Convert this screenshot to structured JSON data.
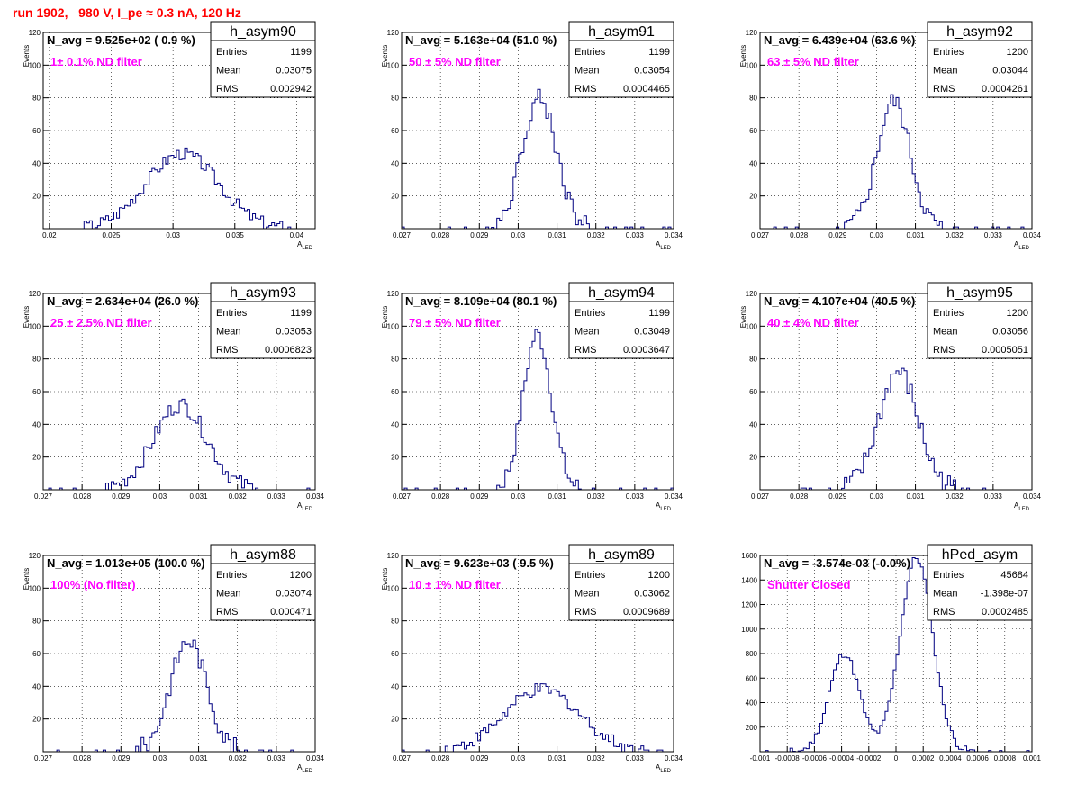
{
  "page": {
    "title": "run 1902,   980 V, I_pe ≈ 0.3 nA, 120 Hz"
  },
  "colors": {
    "title": "#ff0000",
    "annotation": "#ff00ff",
    "histogram": "#000080",
    "grid": "#000000"
  },
  "chart_data": [
    {
      "type": "bar",
      "name": "h_asym90",
      "nlabel": "N_avg = 9.525e+02 ( 0.9 %)",
      "note": "1± 0.1% ND filter",
      "stats": [
        [
          "Entries",
          "1199"
        ],
        [
          "Mean",
          "0.03075"
        ],
        [
          "RMS",
          "0.002942"
        ]
      ],
      "xlabel": "A_LED",
      "ylabel": "Events",
      "xlim": [
        0.0195,
        0.0415
      ],
      "ylim": [
        0,
        120
      ],
      "xticks": [
        0.02,
        0.025,
        0.03,
        0.035,
        0.04
      ],
      "xticklabels": [
        "0.02",
        "0.025",
        "0.03",
        "0.035",
        "0.04"
      ],
      "yticks": [
        20,
        40,
        60,
        80,
        100,
        120
      ],
      "mu": 0.03075,
      "sigma": 0.00294,
      "peak": 46,
      "jitter": 4
    },
    {
      "type": "bar",
      "name": "h_asym91",
      "nlabel": "N_avg = 5.163e+04 (51.0 %)",
      "note": "50 ± 5% ND filter",
      "stats": [
        [
          "Entries",
          "1199"
        ],
        [
          "Mean",
          "0.03054"
        ],
        [
          "RMS",
          "0.0004465"
        ]
      ],
      "xlabel": "A_LED",
      "ylabel": "Events",
      "xlim": [
        0.027,
        0.034
      ],
      "ylim": [
        0,
        120
      ],
      "xticks": [
        0.027,
        0.028,
        0.029,
        0.03,
        0.031,
        0.032,
        0.033,
        0.034
      ],
      "xticklabels": [
        "0.027",
        "0.028",
        "0.029",
        "0.03",
        "0.031",
        "0.032",
        "0.033",
        "0.034"
      ],
      "yticks": [
        20,
        40,
        60,
        80,
        100,
        120
      ],
      "mu": 0.03054,
      "sigma": 0.000447,
      "peak": 80,
      "jitter": 6
    },
    {
      "type": "bar",
      "name": "h_asym92",
      "nlabel": "N_avg = 6.439e+04 (63.6 %)",
      "note": "63 ± 5% ND filter",
      "stats": [
        [
          "Entries",
          "1200"
        ],
        [
          "Mean",
          "0.03044"
        ],
        [
          "RMS",
          "0.0004261"
        ]
      ],
      "xlabel": "A_LED",
      "ylabel": "Events",
      "xlim": [
        0.027,
        0.034
      ],
      "ylim": [
        0,
        120
      ],
      "xticks": [
        0.027,
        0.028,
        0.029,
        0.03,
        0.031,
        0.032,
        0.033,
        0.034
      ],
      "xticklabels": [
        "0.027",
        "0.028",
        "0.029",
        "0.03",
        "0.031",
        "0.032",
        "0.033",
        "0.034"
      ],
      "yticks": [
        20,
        40,
        60,
        80,
        100,
        120
      ],
      "mu": 0.03044,
      "sigma": 0.000426,
      "peak": 78,
      "jitter": 6
    },
    {
      "type": "bar",
      "name": "h_asym93",
      "nlabel": "N_avg = 2.634e+04 (26.0 %)",
      "note": "25 ± 2.5% ND filter",
      "stats": [
        [
          "Entries",
          "1199"
        ],
        [
          "Mean",
          "0.03053"
        ],
        [
          "RMS",
          "0.0006823"
        ]
      ],
      "xlabel": "A_LED",
      "ylabel": "Events",
      "xlim": [
        0.027,
        0.034
      ],
      "ylim": [
        0,
        120
      ],
      "xticks": [
        0.027,
        0.028,
        0.029,
        0.03,
        0.031,
        0.032,
        0.033,
        0.034
      ],
      "xticklabels": [
        "0.027",
        "0.028",
        "0.029",
        "0.03",
        "0.031",
        "0.032",
        "0.033",
        "0.034"
      ],
      "yticks": [
        20,
        40,
        60,
        80,
        100,
        120
      ],
      "mu": 0.03053,
      "sigma": 0.000682,
      "peak": 52,
      "jitter": 5
    },
    {
      "type": "bar",
      "name": "h_asym94",
      "nlabel": "N_avg = 8.109e+04 (80.1 %)",
      "note": "79 ± 5% ND filter",
      "stats": [
        [
          "Entries",
          "1199"
        ],
        [
          "Mean",
          "0.03049"
        ],
        [
          "RMS",
          "0.0003647"
        ]
      ],
      "xlabel": "A_LED",
      "ylabel": "Events",
      "xlim": [
        0.027,
        0.034
      ],
      "ylim": [
        0,
        120
      ],
      "xticks": [
        0.027,
        0.028,
        0.029,
        0.03,
        0.031,
        0.032,
        0.033,
        0.034
      ],
      "xticklabels": [
        "0.027",
        "0.028",
        "0.029",
        "0.03",
        "0.031",
        "0.032",
        "0.033",
        "0.034"
      ],
      "yticks": [
        20,
        40,
        60,
        80,
        100,
        120
      ],
      "mu": 0.03049,
      "sigma": 0.000365,
      "peak": 95,
      "jitter": 6
    },
    {
      "type": "bar",
      "name": "h_asym95",
      "nlabel": "N_avg = 4.107e+04 (40.5 %)",
      "note": "40 ± 4% ND filter",
      "stats": [
        [
          "Entries",
          "1200"
        ],
        [
          "Mean",
          "0.03056"
        ],
        [
          "RMS",
          "0.0005051"
        ]
      ],
      "xlabel": "A_LED",
      "ylabel": "Events",
      "xlim": [
        0.027,
        0.034
      ],
      "ylim": [
        0,
        120
      ],
      "xticks": [
        0.027,
        0.028,
        0.029,
        0.03,
        0.031,
        0.032,
        0.033,
        0.034
      ],
      "xticklabels": [
        "0.027",
        "0.028",
        "0.029",
        "0.03",
        "0.031",
        "0.032",
        "0.033",
        "0.034"
      ],
      "yticks": [
        20,
        40,
        60,
        80,
        100,
        120
      ],
      "mu": 0.03056,
      "sigma": 0.000505,
      "peak": 72,
      "jitter": 7
    },
    {
      "type": "bar",
      "name": "h_asym88",
      "nlabel": "N_avg = 1.013e+05 (100.0 %)",
      "note": "100% (No filter)",
      "stats": [
        [
          "Entries",
          "1200"
        ],
        [
          "Mean",
          "0.03074"
        ],
        [
          "RMS",
          "0.000471"
        ]
      ],
      "xlabel": "A_LED",
      "ylabel": "Events",
      "xlim": [
        0.027,
        0.034
      ],
      "ylim": [
        0,
        120
      ],
      "xticks": [
        0.027,
        0.028,
        0.029,
        0.03,
        0.031,
        0.032,
        0.033,
        0.034
      ],
      "xticklabels": [
        "0.027",
        "0.028",
        "0.029",
        "0.03",
        "0.031",
        "0.032",
        "0.033",
        "0.034"
      ],
      "yticks": [
        20,
        40,
        60,
        80,
        100,
        120
      ],
      "mu": 0.03074,
      "sigma": 0.000471,
      "peak": 68,
      "jitter": 6
    },
    {
      "type": "bar",
      "name": "h_asym89",
      "nlabel": "N_avg = 9.623e+03 ( 9.5 %)",
      "note": "10 ± 1% ND filter",
      "stats": [
        [
          "Entries",
          "1200"
        ],
        [
          "Mean",
          "0.03062"
        ],
        [
          "RMS",
          "0.0009689"
        ]
      ],
      "xlabel": "A_LED",
      "ylabel": "Events",
      "xlim": [
        0.027,
        0.034
      ],
      "ylim": [
        0,
        120
      ],
      "xticks": [
        0.027,
        0.028,
        0.029,
        0.03,
        0.031,
        0.032,
        0.033,
        0.034
      ],
      "xticklabels": [
        "0.027",
        "0.028",
        "0.029",
        "0.03",
        "0.031",
        "0.032",
        "0.033",
        "0.034"
      ],
      "yticks": [
        20,
        40,
        60,
        80,
        100,
        120
      ],
      "mu": 0.03062,
      "sigma": 0.000969,
      "peak": 38,
      "jitter": 4
    },
    {
      "type": "bar",
      "name": "hPed_asym",
      "nlabel": "N_avg = -3.574e-03 (-0.0%)",
      "note": "Shutter Closed",
      "stats": [
        [
          "Entries",
          "45684"
        ],
        [
          "Mean",
          "-1.398e-07"
        ],
        [
          "RMS",
          "0.0002485"
        ]
      ],
      "xlabel": "",
      "ylabel": "",
      "xlim": [
        -0.001,
        0.001
      ],
      "ylim": [
        0,
        1600
      ],
      "xticks": [
        -0.001,
        -0.0008,
        -0.0006,
        -0.0004,
        -0.0002,
        0,
        0.0002,
        0.0004,
        0.0006,
        0.0008,
        0.001
      ],
      "xticklabels": [
        "-0.001",
        "-0.0008",
        "-0.0006",
        "-0.0004",
        "-0.0002",
        "0",
        "0.0002",
        "0.0004",
        "0.0006",
        "0.0008",
        "0.001"
      ],
      "yticks": [
        200,
        400,
        600,
        800,
        1000,
        1200,
        1400,
        1600
      ],
      "bimodal": [
        [
          -0.00038,
          0.00011,
          800
        ],
        [
          0.00015,
          0.00012,
          1580
        ]
      ],
      "jitter": 30
    }
  ]
}
